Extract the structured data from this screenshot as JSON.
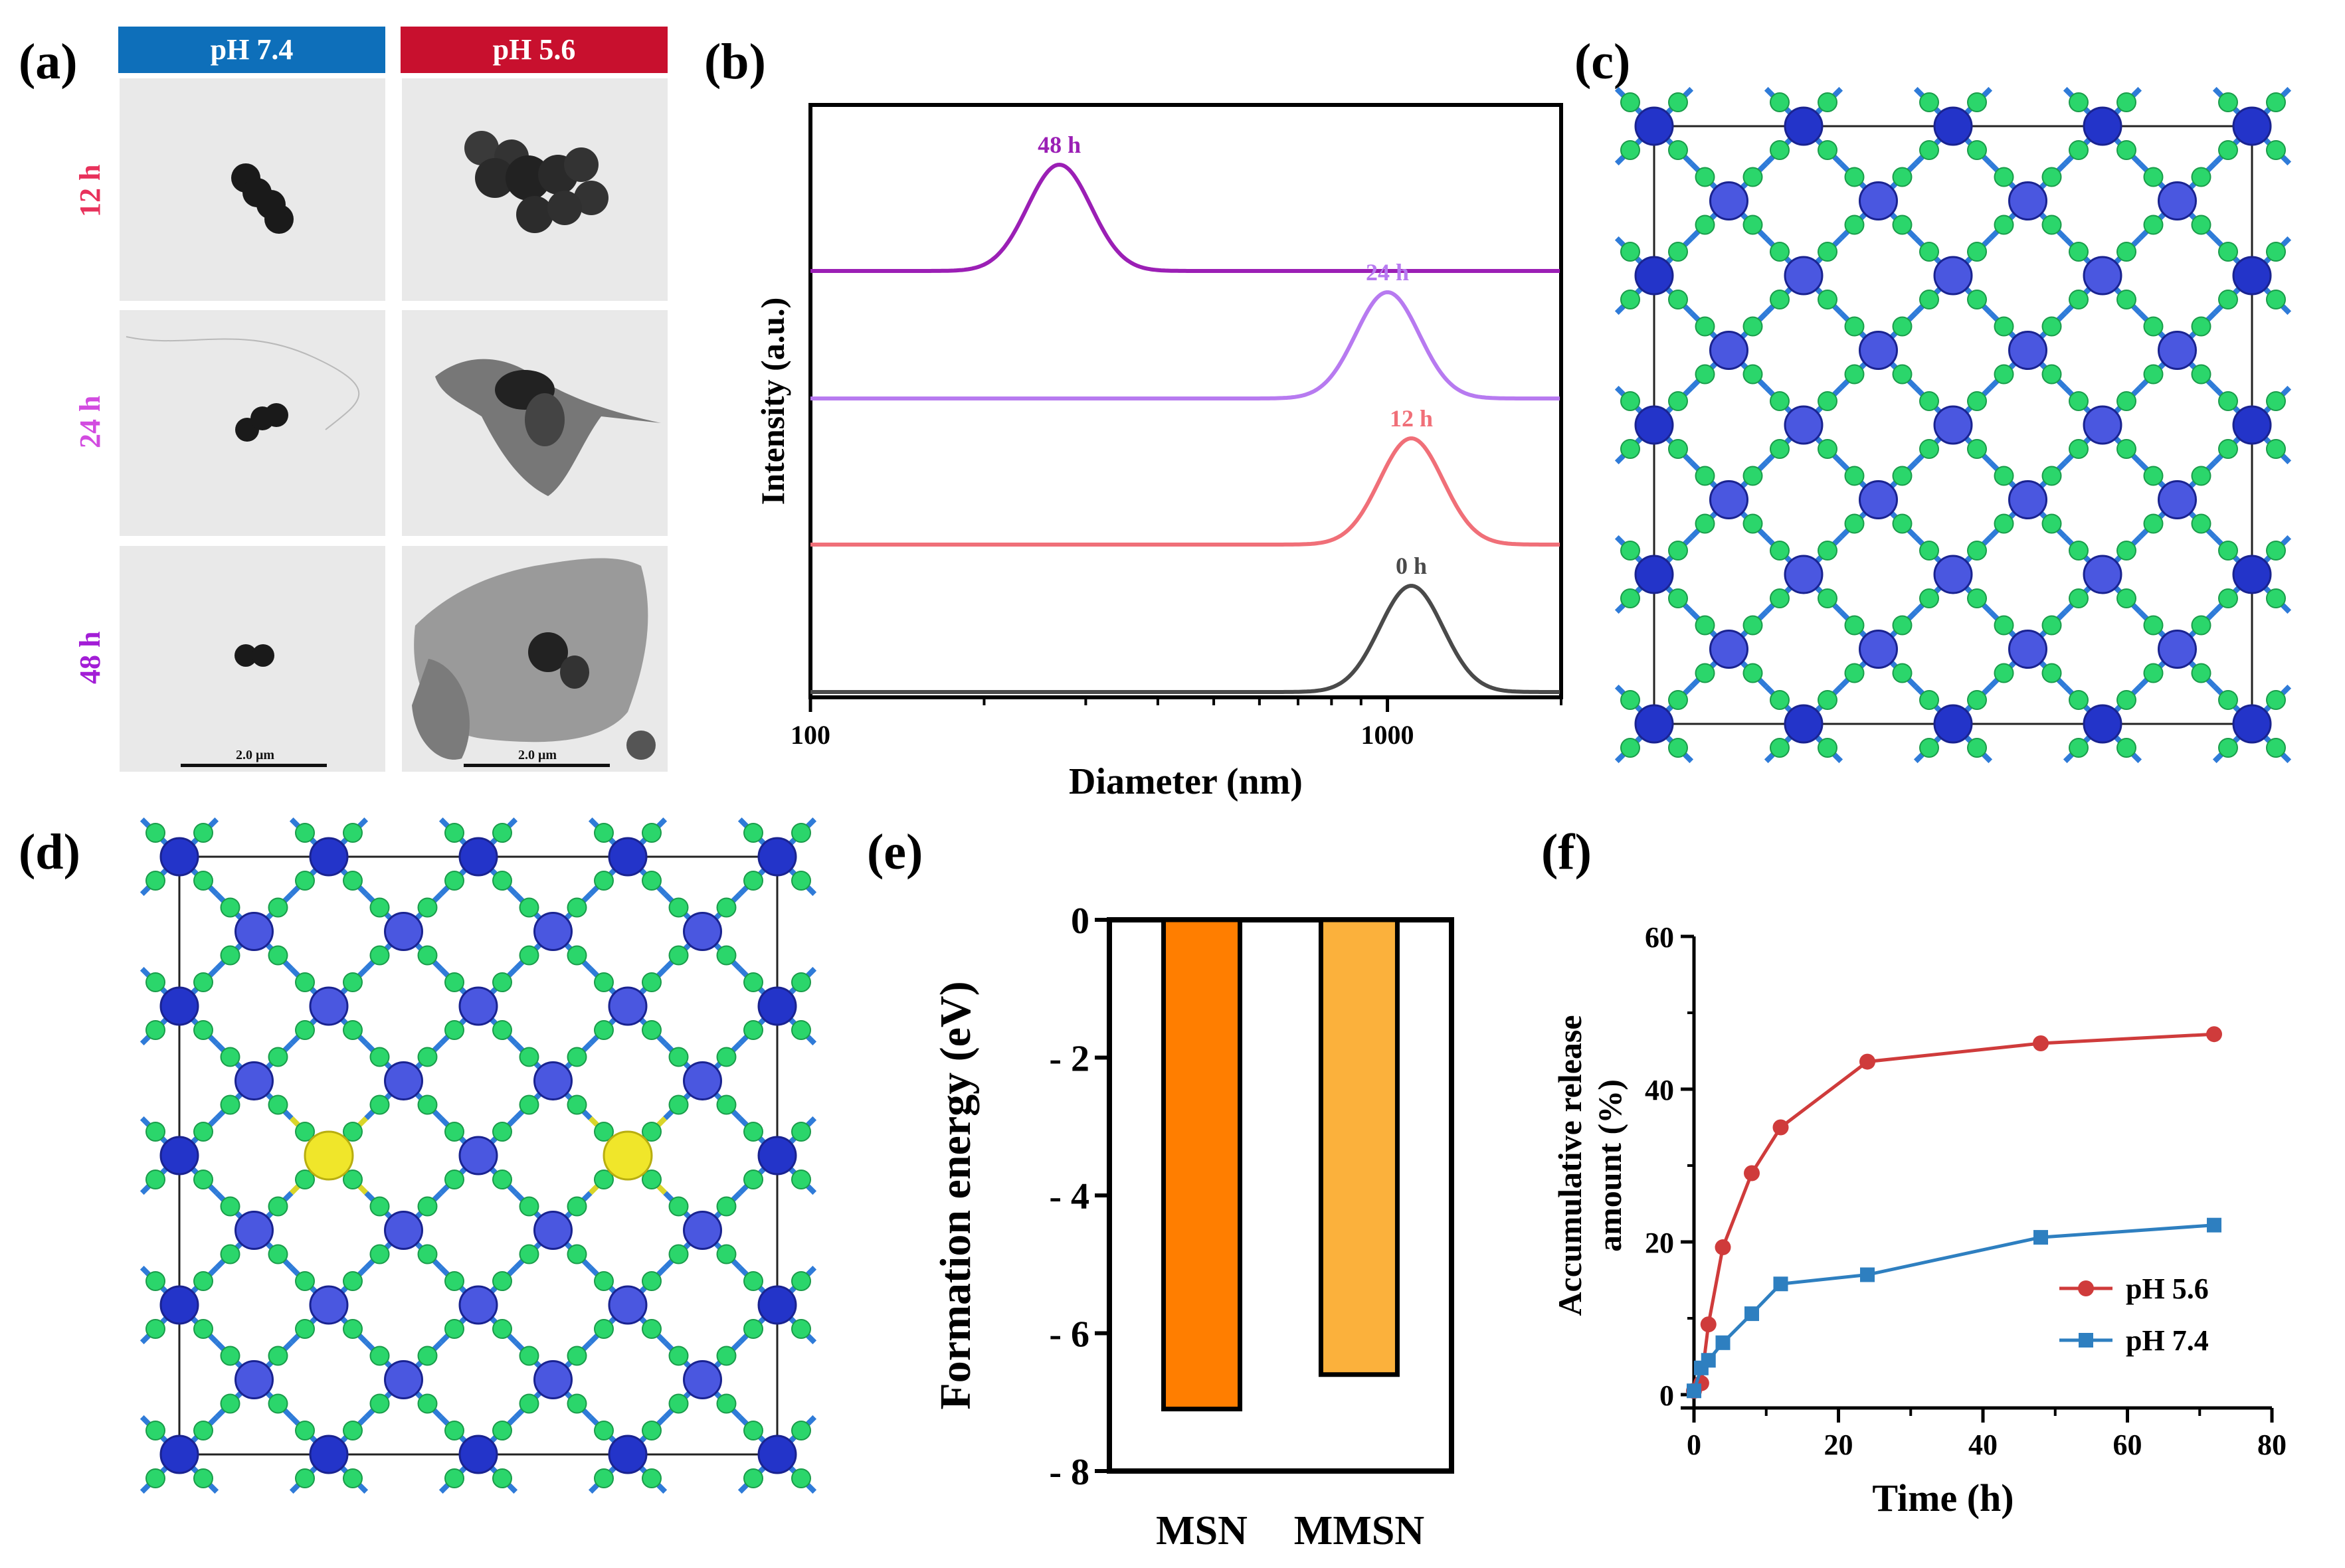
{
  "panels": {
    "a": {
      "label": "(a)",
      "col_headers": [
        {
          "text": "pH 7.4",
          "color": "#0e6fba"
        },
        {
          "text": "pH 5.6",
          "color": "#c8102e"
        }
      ],
      "row_labels": [
        {
          "text": "12 h",
          "color": "#e8315b"
        },
        {
          "text": "24 h",
          "color": "#d24be0"
        },
        {
          "text": "48 h",
          "color": "#a21dd6"
        }
      ],
      "scale_bar": "2.0 μm"
    },
    "b": {
      "label": "(b)"
    },
    "c": {
      "label": "(c)"
    },
    "d": {
      "label": "(d)"
    },
    "e": {
      "label": "(e)"
    },
    "f": {
      "label": "(f)"
    }
  },
  "chart_data": [
    {
      "id": "b",
      "type": "line",
      "xscale": "log",
      "xlim": [
        100,
        2000
      ],
      "xlabel": "Diameter (nm)",
      "ylabel": "Intensity (a.u.)",
      "xticks": [
        "100",
        "1000"
      ],
      "series": [
        {
          "name": "48 h",
          "color": "#9b1fb5",
          "peak": 270
        },
        {
          "name": "24 h",
          "color": "#b77af0",
          "peak": 1000
        },
        {
          "name": "12 h",
          "color": "#f06f78",
          "peak": 1100
        },
        {
          "name": "0 h",
          "color": "#4a4a4a",
          "peak": 1100
        }
      ]
    },
    {
      "id": "e",
      "type": "bar",
      "categories": [
        "MSN",
        "MMSN"
      ],
      "values": [
        -7.1,
        -6.6
      ],
      "colors": [
        "#ff7e00",
        "#fbb13c"
      ],
      "ylabel": "Formation energy (eV)",
      "ylim": [
        -8,
        0
      ],
      "yticks": [
        "0",
        "- 2",
        "- 4",
        "- 6",
        "- 8"
      ]
    },
    {
      "id": "f",
      "type": "line",
      "xlabel": "Time (h)",
      "ylabel_line1": "Accumulative release",
      "ylabel_line2": "amount (%)",
      "xlim": [
        0,
        80
      ],
      "ylim": [
        0,
        60
      ],
      "xticks": [
        "0",
        "20",
        "40",
        "60",
        "80"
      ],
      "yticks": [
        "0",
        "20",
        "40",
        "60"
      ],
      "series": [
        {
          "name": "pH 5.6",
          "color": "#cf3b3b",
          "marker": "circle",
          "x": [
            0,
            1,
            2,
            4,
            8,
            12,
            24,
            48,
            72
          ],
          "y": [
            0.5,
            1.5,
            9.2,
            19.3,
            29.0,
            35.0,
            43.6,
            46.0,
            47.2
          ]
        },
        {
          "name": "pH 7.4",
          "color": "#2e7fc0",
          "marker": "square",
          "x": [
            0,
            1,
            2,
            4,
            8,
            12,
            24,
            48,
            72
          ],
          "y": [
            0.5,
            3.5,
            4.5,
            6.8,
            10.6,
            14.5,
            15.7,
            20.6,
            22.2
          ]
        }
      ]
    }
  ]
}
